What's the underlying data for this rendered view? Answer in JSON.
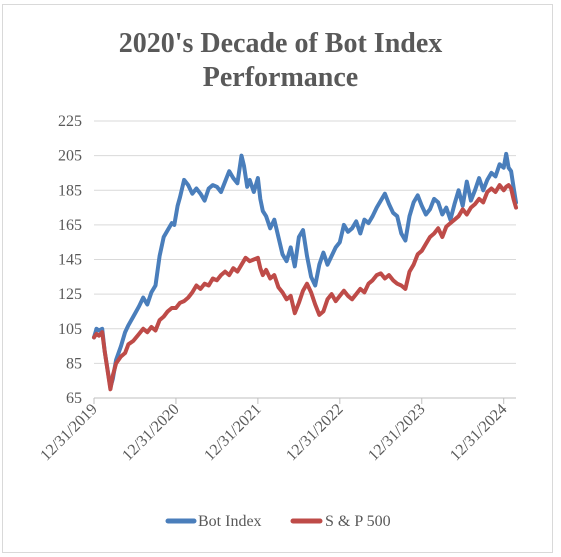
{
  "chart_data": {
    "type": "line",
    "title_line1": "2020's Decade of Bot Index",
    "title_line2": "Performance",
    "xlabel": "",
    "ylabel": "",
    "ylim": [
      65,
      225
    ],
    "yticks": [
      65,
      85,
      105,
      125,
      145,
      165,
      185,
      205,
      225
    ],
    "x_tick_labels": [
      "12/31/2019",
      "12/31/2020",
      "12/31/2021",
      "12/31/2022",
      "12/31/2023",
      "12/31/2024"
    ],
    "x_tick_years": [
      2020.0,
      2021.0,
      2022.0,
      2023.0,
      2024.0,
      2025.0
    ],
    "xlim": [
      2020.0,
      2025.15
    ],
    "grid": "horizontal",
    "legend_position": "bottom",
    "series": [
      {
        "name": "Bot Index",
        "color": "#4a7ebb",
        "points": [
          [
            2020.0,
            100
          ],
          [
            2020.03,
            105
          ],
          [
            2020.06,
            104
          ],
          [
            2020.1,
            105
          ],
          [
            2020.13,
            92
          ],
          [
            2020.2,
            71
          ],
          [
            2020.23,
            76
          ],
          [
            2020.27,
            87
          ],
          [
            2020.33,
            95
          ],
          [
            2020.38,
            103
          ],
          [
            2020.42,
            107
          ],
          [
            2020.48,
            112
          ],
          [
            2020.55,
            118
          ],
          [
            2020.6,
            123
          ],
          [
            2020.65,
            119
          ],
          [
            2020.7,
            126
          ],
          [
            2020.75,
            130
          ],
          [
            2020.8,
            147
          ],
          [
            2020.85,
            158
          ],
          [
            2020.9,
            162
          ],
          [
            2020.95,
            166
          ],
          [
            2020.98,
            165
          ],
          [
            2021.02,
            176
          ],
          [
            2021.05,
            181
          ],
          [
            2021.1,
            191
          ],
          [
            2021.15,
            188
          ],
          [
            2021.2,
            183
          ],
          [
            2021.25,
            186
          ],
          [
            2021.3,
            183
          ],
          [
            2021.35,
            179
          ],
          [
            2021.4,
            186
          ],
          [
            2021.45,
            188
          ],
          [
            2021.5,
            187
          ],
          [
            2021.55,
            184
          ],
          [
            2021.6,
            190
          ],
          [
            2021.65,
            196
          ],
          [
            2021.7,
            192
          ],
          [
            2021.75,
            189
          ],
          [
            2021.8,
            205
          ],
          [
            2021.83,
            199
          ],
          [
            2021.87,
            187
          ],
          [
            2021.9,
            191
          ],
          [
            2021.95,
            184
          ],
          [
            2022.0,
            192
          ],
          [
            2022.03,
            180
          ],
          [
            2022.06,
            173
          ],
          [
            2022.1,
            170
          ],
          [
            2022.15,
            163
          ],
          [
            2022.2,
            168
          ],
          [
            2022.25,
            158
          ],
          [
            2022.3,
            148
          ],
          [
            2022.35,
            144
          ],
          [
            2022.4,
            152
          ],
          [
            2022.45,
            141
          ],
          [
            2022.5,
            158
          ],
          [
            2022.55,
            162
          ],
          [
            2022.6,
            147
          ],
          [
            2022.65,
            135
          ],
          [
            2022.7,
            130
          ],
          [
            2022.75,
            142
          ],
          [
            2022.8,
            149
          ],
          [
            2022.85,
            142
          ],
          [
            2022.9,
            147
          ],
          [
            2022.95,
            152
          ],
          [
            2023.0,
            155
          ],
          [
            2023.05,
            165
          ],
          [
            2023.1,
            161
          ],
          [
            2023.15,
            163
          ],
          [
            2023.2,
            167
          ],
          [
            2023.25,
            160
          ],
          [
            2023.3,
            168
          ],
          [
            2023.35,
            166
          ],
          [
            2023.4,
            170
          ],
          [
            2023.45,
            175
          ],
          [
            2023.5,
            179
          ],
          [
            2023.55,
            183
          ],
          [
            2023.6,
            177
          ],
          [
            2023.65,
            172
          ],
          [
            2023.7,
            170
          ],
          [
            2023.75,
            160
          ],
          [
            2023.8,
            156
          ],
          [
            2023.85,
            170
          ],
          [
            2023.9,
            178
          ],
          [
            2023.95,
            182
          ],
          [
            2024.0,
            176
          ],
          [
            2024.05,
            171
          ],
          [
            2024.1,
            174
          ],
          [
            2024.15,
            180
          ],
          [
            2024.2,
            178
          ],
          [
            2024.25,
            171
          ],
          [
            2024.3,
            175
          ],
          [
            2024.35,
            168
          ],
          [
            2024.4,
            177
          ],
          [
            2024.45,
            185
          ],
          [
            2024.5,
            176
          ],
          [
            2024.55,
            190
          ],
          [
            2024.6,
            179
          ],
          [
            2024.65,
            185
          ],
          [
            2024.7,
            192
          ],
          [
            2024.75,
            185
          ],
          [
            2024.8,
            191
          ],
          [
            2024.85,
            195
          ],
          [
            2024.9,
            193
          ],
          [
            2024.95,
            200
          ],
          [
            2025.0,
            198
          ],
          [
            2025.03,
            206
          ],
          [
            2025.06,
            198
          ],
          [
            2025.09,
            196
          ],
          [
            2025.12,
            187
          ],
          [
            2025.15,
            178
          ]
        ]
      },
      {
        "name": "S & P 500",
        "color": "#be4b48",
        "points": [
          [
            2020.0,
            100
          ],
          [
            2020.03,
            102
          ],
          [
            2020.06,
            101
          ],
          [
            2020.1,
            103
          ],
          [
            2020.13,
            92
          ],
          [
            2020.2,
            70
          ],
          [
            2020.23,
            78
          ],
          [
            2020.27,
            85
          ],
          [
            2020.33,
            89
          ],
          [
            2020.38,
            91
          ],
          [
            2020.42,
            96
          ],
          [
            2020.48,
            98
          ],
          [
            2020.55,
            102
          ],
          [
            2020.6,
            105
          ],
          [
            2020.65,
            103
          ],
          [
            2020.7,
            106
          ],
          [
            2020.75,
            104
          ],
          [
            2020.8,
            110
          ],
          [
            2020.85,
            112
          ],
          [
            2020.9,
            115
          ],
          [
            2020.95,
            117
          ],
          [
            2021.0,
            117
          ],
          [
            2021.05,
            120
          ],
          [
            2021.1,
            121
          ],
          [
            2021.15,
            123
          ],
          [
            2021.2,
            126
          ],
          [
            2021.25,
            130
          ],
          [
            2021.3,
            128
          ],
          [
            2021.35,
            131
          ],
          [
            2021.4,
            130
          ],
          [
            2021.45,
            134
          ],
          [
            2021.5,
            133
          ],
          [
            2021.55,
            136
          ],
          [
            2021.6,
            138
          ],
          [
            2021.65,
            136
          ],
          [
            2021.7,
            140
          ],
          [
            2021.75,
            138
          ],
          [
            2021.8,
            142
          ],
          [
            2021.85,
            146
          ],
          [
            2021.9,
            144
          ],
          [
            2021.95,
            145
          ],
          [
            2022.0,
            146
          ],
          [
            2022.03,
            140
          ],
          [
            2022.06,
            136
          ],
          [
            2022.1,
            139
          ],
          [
            2022.15,
            134
          ],
          [
            2022.2,
            136
          ],
          [
            2022.25,
            129
          ],
          [
            2022.3,
            126
          ],
          [
            2022.35,
            122
          ],
          [
            2022.4,
            124
          ],
          [
            2022.45,
            114
          ],
          [
            2022.5,
            120
          ],
          [
            2022.55,
            127
          ],
          [
            2022.6,
            131
          ],
          [
            2022.65,
            126
          ],
          [
            2022.7,
            119
          ],
          [
            2022.75,
            113
          ],
          [
            2022.8,
            115
          ],
          [
            2022.85,
            122
          ],
          [
            2022.9,
            125
          ],
          [
            2022.95,
            121
          ],
          [
            2023.0,
            124
          ],
          [
            2023.05,
            127
          ],
          [
            2023.1,
            124
          ],
          [
            2023.15,
            122
          ],
          [
            2023.2,
            125
          ],
          [
            2023.25,
            128
          ],
          [
            2023.3,
            126
          ],
          [
            2023.35,
            131
          ],
          [
            2023.4,
            133
          ],
          [
            2023.45,
            136
          ],
          [
            2023.5,
            137
          ],
          [
            2023.55,
            134
          ],
          [
            2023.6,
            136
          ],
          [
            2023.65,
            133
          ],
          [
            2023.7,
            131
          ],
          [
            2023.75,
            130
          ],
          [
            2023.8,
            128
          ],
          [
            2023.85,
            138
          ],
          [
            2023.9,
            142
          ],
          [
            2023.95,
            148
          ],
          [
            2024.0,
            150
          ],
          [
            2024.05,
            154
          ],
          [
            2024.1,
            158
          ],
          [
            2024.15,
            160
          ],
          [
            2024.2,
            163
          ],
          [
            2024.25,
            158
          ],
          [
            2024.3,
            164
          ],
          [
            2024.35,
            166
          ],
          [
            2024.4,
            168
          ],
          [
            2024.45,
            170
          ],
          [
            2024.5,
            174
          ],
          [
            2024.55,
            171
          ],
          [
            2024.6,
            175
          ],
          [
            2024.65,
            177
          ],
          [
            2024.7,
            180
          ],
          [
            2024.75,
            178
          ],
          [
            2024.8,
            184
          ],
          [
            2024.85,
            186
          ],
          [
            2024.9,
            184
          ],
          [
            2024.95,
            188
          ],
          [
            2025.0,
            185
          ],
          [
            2025.03,
            187
          ],
          [
            2025.06,
            188
          ],
          [
            2025.09,
            186
          ],
          [
            2025.12,
            180
          ],
          [
            2025.15,
            175
          ]
        ]
      }
    ]
  }
}
